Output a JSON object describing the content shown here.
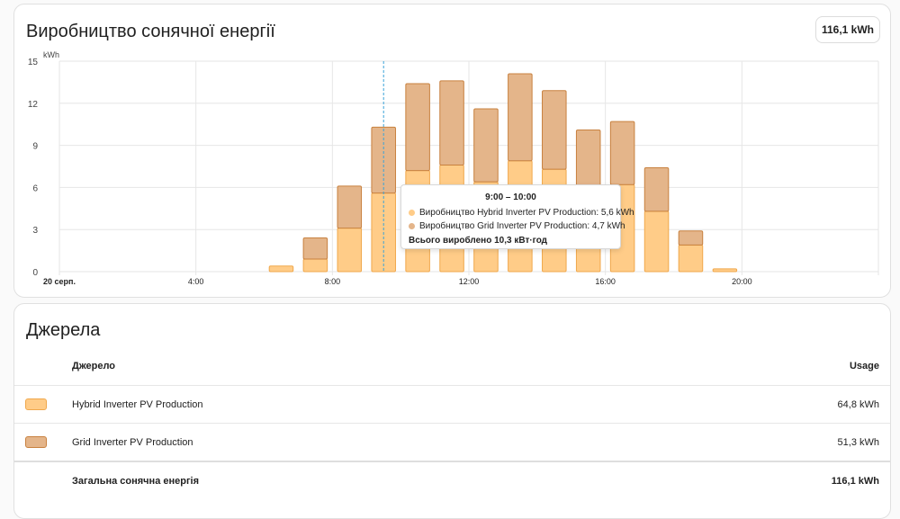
{
  "chart_card": {
    "title": "Виробництво сонячної енергії",
    "total_badge": "116,1 kWh"
  },
  "chart_data": {
    "type": "bar",
    "stacked": true,
    "ylabel": "kWh",
    "ylim": [
      0,
      15
    ],
    "yticks": [
      "0",
      "3",
      "6",
      "9",
      "12",
      "15"
    ],
    "xlim_hours": [
      0,
      24
    ],
    "xticks": [
      {
        "hour": 0,
        "label": "20 серп.",
        "bold": true
      },
      {
        "hour": 4,
        "label": "4:00"
      },
      {
        "hour": 8,
        "label": "8:00"
      },
      {
        "hour": 12,
        "label": "12:00"
      },
      {
        "hour": 16,
        "label": "16:00"
      },
      {
        "hour": 20,
        "label": "20:00"
      }
    ],
    "grid": true,
    "hours": [
      6,
      7,
      8,
      9,
      10,
      11,
      12,
      13,
      14,
      15,
      16,
      17,
      18,
      19
    ],
    "series": [
      {
        "name": "Hybrid Inverter PV Production",
        "color": "#ffcc88",
        "stroke": "#f0a84c",
        "values": [
          0.4,
          0.9,
          3.1,
          5.6,
          7.2,
          7.6,
          6.4,
          7.9,
          7.3,
          6.0,
          6.2,
          4.3,
          1.9,
          0.2
        ]
      },
      {
        "name": "Grid Inverter PV Production",
        "color": "#e4b58a",
        "stroke": "#c8813f",
        "values": [
          0.0,
          1.5,
          3.0,
          4.7,
          6.2,
          6.0,
          5.2,
          6.2,
          5.6,
          4.1,
          4.5,
          3.1,
          1.0,
          0.0
        ]
      }
    ],
    "cursor_hour": 9.5
  },
  "tooltip": {
    "title": "9:00 – 10:00",
    "rows": [
      {
        "label": "Виробництво Hybrid Inverter PV Production: 5,6 kWh",
        "color": "#ffcc88"
      },
      {
        "label": "Виробництво Grid Inverter PV Production: 4,7 kWh",
        "color": "#e4b58a"
      }
    ],
    "total": "Всього вироблено 10,3 кВт·год"
  },
  "sources_card": {
    "title": "Джерела",
    "col_source": "Джерело",
    "col_usage": "Usage",
    "rows": [
      {
        "name": "Hybrid Inverter PV Production",
        "usage": "64,8 kWh",
        "color": "#ffcc88",
        "stroke": "#f0a84c"
      },
      {
        "name": "Grid Inverter PV Production",
        "usage": "51,3 kWh",
        "color": "#e4b58a",
        "stroke": "#c8813f"
      }
    ],
    "total_label": "Загальна сонячна енергія",
    "total_value": "116,1 kWh"
  }
}
